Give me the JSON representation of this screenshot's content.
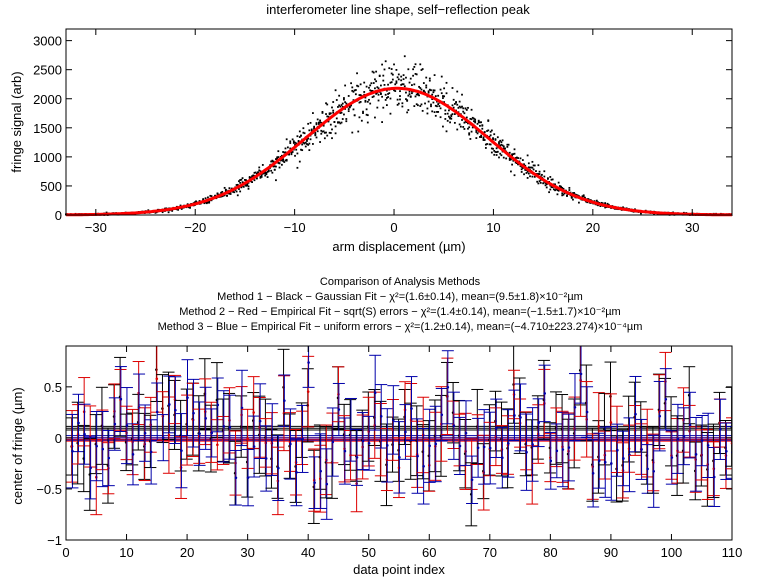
{
  "chart_data": [
    {
      "type": "scatter",
      "title": "interferometer line shape, self−reflection peak",
      "xlabel": "arm displacement (µm)",
      "ylabel": "fringe signal (arb)",
      "xlim": [
        -33,
        34
      ],
      "ylim": [
        0,
        3200
      ],
      "xticks": [
        -30,
        -20,
        -10,
        0,
        10,
        20,
        30
      ],
      "yticks": [
        0,
        500,
        1000,
        1500,
        2000,
        2500,
        3000
      ],
      "xtick_labels": [
        "−30",
        "−20",
        "−10",
        "0",
        "10",
        "20",
        "30"
      ],
      "ytick_labels": [
        "0",
        "500",
        "1000",
        "1500",
        "2000",
        "2500",
        "3000"
      ],
      "grid": false,
      "series": [
        {
          "kind": "scatter",
          "color": "#000000",
          "peak": 2180,
          "center": 0.3,
          "sigma": 9.2,
          "spread": 0.1
        },
        {
          "kind": "line",
          "color": "#ff0000",
          "peak": 2180,
          "center": 0.3,
          "sigma": 9.2
        }
      ]
    },
    {
      "type": "scatter",
      "title_lines": [
        "Comparison of Analysis Methods",
        "Method 1 − Black − Gaussian Fit − χ²=(1.6±0.14), mean=(9.5±1.8)×10⁻²µm",
        "Method 2 − Red − Empirical Fit − sqrt(S) errors − χ²=(1.4±0.14), mean=(−1.5±1.7)×10⁻²µm",
        "Method 3 − Blue − Empirical Fit − uniform errors − χ²=(1.2±0.14), mean=(−4.710±223.274)×10⁻⁴µm"
      ],
      "xlabel": "data point index",
      "ylabel": "center of fringe (µm)",
      "xlim": [
        0,
        110
      ],
      "ylim": [
        -1,
        0.9
      ],
      "xticks": [
        0,
        10,
        20,
        30,
        40,
        50,
        60,
        70,
        80,
        90,
        100,
        110
      ],
      "yticks": [
        -1,
        -0.5,
        0,
        0.5
      ],
      "xtick_labels": [
        "0",
        "10",
        "20",
        "30",
        "40",
        "50",
        "60",
        "70",
        "80",
        "90",
        "100",
        "110"
      ],
      "ytick_labels": [
        "−1",
        "−0.5",
        "0",
        "0.5"
      ],
      "grid": false,
      "mean_lines": [
        {
          "color": "#000000",
          "value": 0.095,
          "error": 0.018
        },
        {
          "color": "#ff0000",
          "value": -0.015,
          "error": 0.017
        },
        {
          "color": "#0000aa",
          "value": 0.0,
          "error": 0.022
        }
      ],
      "errorbar_series": [
        {
          "color": "#000000",
          "half_width": 0.32,
          "scale": 0.24
        },
        {
          "color": "#dd0000",
          "half_width": 0.3,
          "scale": 0.22
        },
        {
          "color": "#0000aa",
          "half_width": 0.3,
          "scale": 0.24
        }
      ],
      "n_points": 110
    }
  ]
}
